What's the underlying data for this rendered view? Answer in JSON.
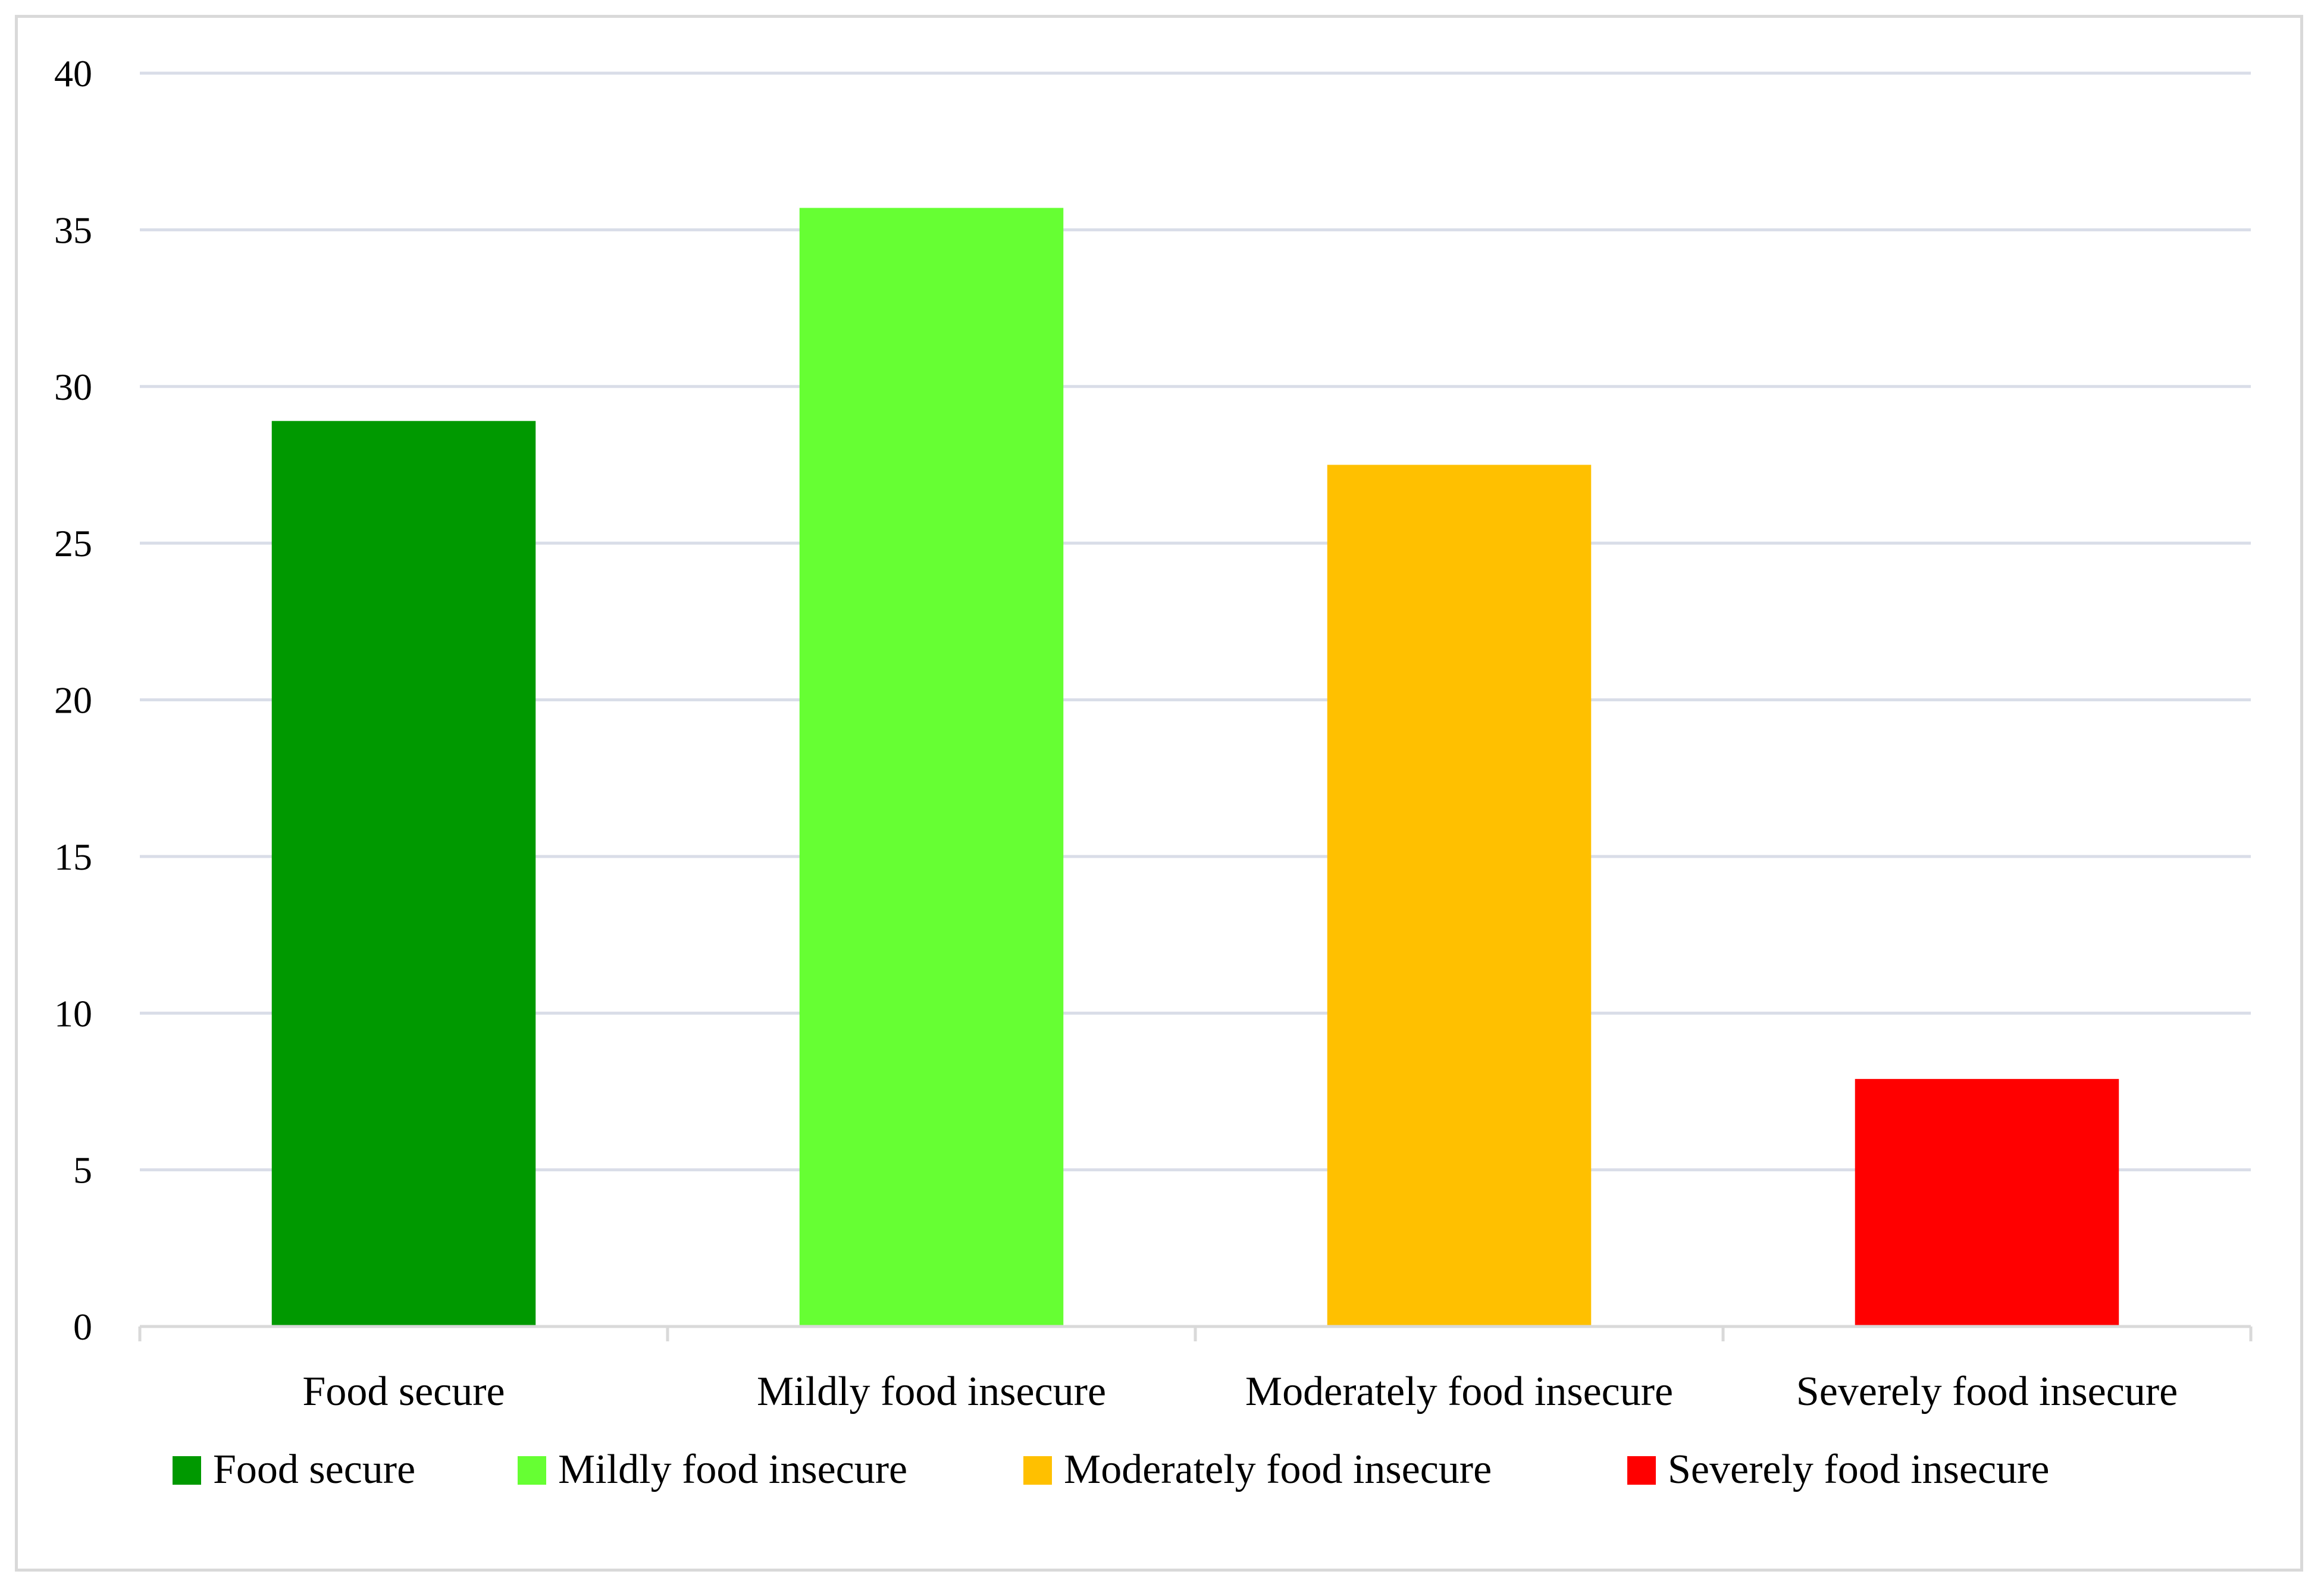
{
  "chart_data": {
    "type": "bar",
    "title": "",
    "xlabel": "",
    "ylabel": "",
    "ylim": [
      0,
      40
    ],
    "yticks": [
      0,
      5,
      10,
      15,
      20,
      25,
      30,
      35,
      40
    ],
    "grid": true,
    "legend_position": "bottom",
    "categories": [
      "Food secure",
      "Mildly food insecure",
      "Moderately food insecure",
      "Severely food insecure"
    ],
    "values": [
      28.9,
      35.7,
      27.5,
      7.9
    ],
    "colors": [
      "#009900",
      "#66ff33",
      "#ffc000",
      "#ff0000"
    ],
    "legend": [
      "Food secure",
      "Mildly food insecure",
      "Moderately food insecure",
      "Severely food insecure"
    ]
  }
}
